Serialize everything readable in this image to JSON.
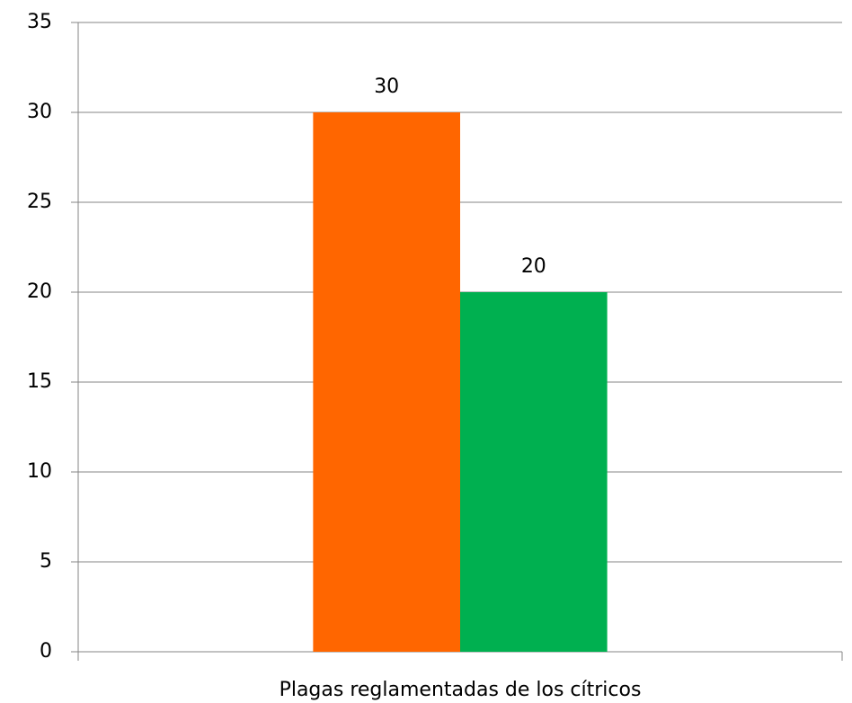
{
  "chart_data": {
    "type": "bar",
    "categories": [
      "Plagas reglamentadas de los cítricos"
    ],
    "series": [
      {
        "color": "#ff6600",
        "values": [
          30
        ]
      },
      {
        "color": "#00b050",
        "values": [
          20
        ]
      }
    ],
    "ylim": [
      0,
      35
    ],
    "yticks": [
      0,
      5,
      10,
      15,
      20,
      25,
      30,
      35
    ],
    "grid": true,
    "data_labels": true
  }
}
